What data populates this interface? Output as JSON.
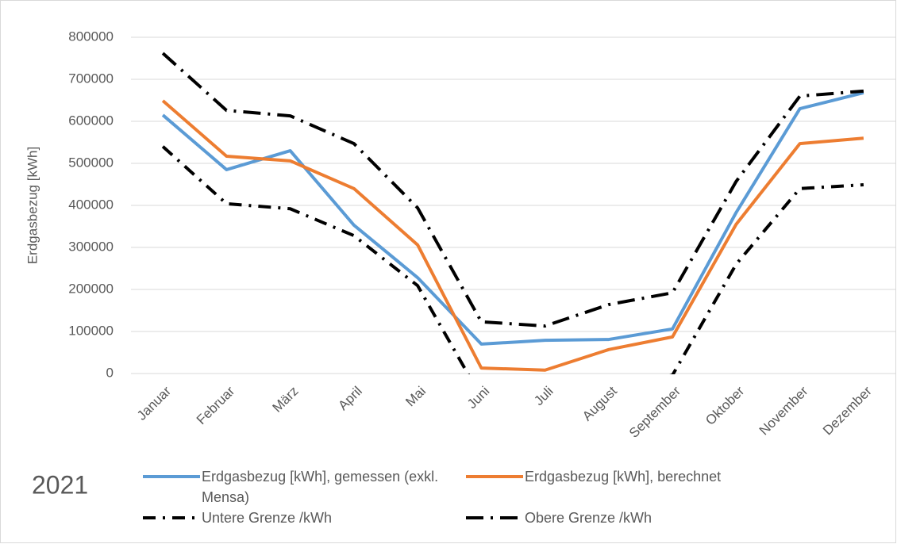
{
  "chart_data": {
    "type": "line",
    "y_label": "Erdgasbezug [kWh]",
    "annotation": "2021",
    "categories": [
      "Januar",
      "Februar",
      "März",
      "April",
      "Mai",
      "Juni",
      "Juli",
      "August",
      "September",
      "Oktober",
      "November",
      "Dezember"
    ],
    "series": [
      {
        "name": "Erdgasbezug [kWh], gemessen (exkl. Mensa)",
        "color": "#5b9bd5",
        "dash": "solid",
        "values": [
          615000,
          485000,
          530000,
          353000,
          228000,
          70000,
          79000,
          81000,
          106000,
          383000,
          630000,
          668000
        ]
      },
      {
        "name": "Erdgasbezug [kWh], berechnet",
        "color": "#ed7d31",
        "dash": "solid",
        "values": [
          649000,
          517000,
          506000,
          440000,
          306000,
          13000,
          8000,
          57000,
          87000,
          355000,
          547000,
          560000
        ]
      },
      {
        "name": "Untere Grenze /kWh",
        "color": "#000000",
        "dash": "dashdot",
        "values": [
          540000,
          404000,
          392000,
          328000,
          209000,
          -57000,
          -70000,
          -40000,
          -4000,
          260000,
          440000,
          449000
        ]
      },
      {
        "name": "Obere Grenze /kWh",
        "color": "#000000",
        "dash": "longdashdot",
        "values": [
          762000,
          626000,
          613000,
          547000,
          394000,
          123000,
          113000,
          164000,
          192000,
          457000,
          660000,
          672000
        ]
      }
    ],
    "ylim": [
      0,
      800000
    ],
    "yticks": [
      0,
      100000,
      200000,
      300000,
      400000,
      500000,
      600000,
      700000,
      800000
    ],
    "grid": true
  }
}
